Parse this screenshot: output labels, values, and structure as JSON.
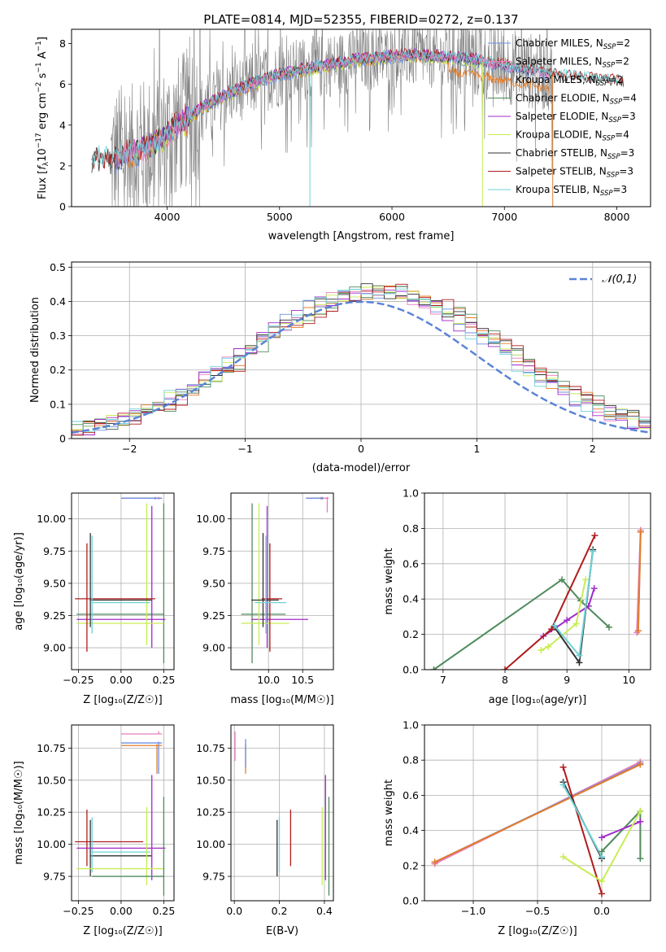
{
  "figure_title": "PLATE=0814, MJD=52355, FIBERID=0272, z=0.137",
  "colors": {
    "Chabrier MILES": "#6f8fe0",
    "Salpeter MILES": "#e87cbf",
    "Kroupa MILES": "#e47c28",
    "Chabrier ELODIE": "#4f8a5b",
    "Salpeter ELODIE": "#a12bc8",
    "Kroupa ELODIE": "#c9ec56",
    "Chabrier STELIB": "#333333",
    "Salpeter STELIB": "#b01c1c",
    "Kroupa STELIB": "#6fd2d6",
    "data": "#808080"
  },
  "chart_data": [
    {
      "id": "spectrum",
      "type": "line",
      "title": "PLATE=0814, MJD=52355, FIBERID=0272, z=0.137",
      "xlabel": "wavelength [Angstrom, rest frame]",
      "ylabel": "Flux [f_λ10⁻¹⁷ erg cm⁻² s⁻¹ A⁻¹]",
      "xlim": [
        3150,
        8300
      ],
      "ylim": [
        0,
        8.7
      ],
      "xticks": [
        "4000",
        "5000",
        "6000",
        "7000",
        "8000"
      ],
      "yticks": [
        "0",
        "2",
        "4",
        "6",
        "8"
      ],
      "grid": false,
      "legend_position": "upper-right",
      "legend": [
        "Chabrier MILES, N_SSP=2",
        "Salpeter MILES, N_SSP=2",
        "Kroupa MILES, N_SSP=2",
        "Chabrier ELODIE, N_SSP=4",
        "Salpeter ELODIE, N_SSP=3",
        "Kroupa ELODIE, N_SSP=4",
        "Chabrier STELIB, N_SSP=3",
        "Salpeter STELIB, N_SSP=3",
        "Kroupa STELIB, N_SSP=3"
      ],
      "legend_items": [
        {
          "label": "Chabrier MILES, N",
          "sub": "SSP",
          "tail": "=2"
        },
        {
          "label": "Salpeter MILES, N",
          "sub": "SSP",
          "tail": "=2"
        },
        {
          "label": "Kroupa MILES, N",
          "sub": "SSP",
          "tail": "=2"
        },
        {
          "label": "Chabrier ELODIE, N",
          "sub": "SSP",
          "tail": "=4"
        },
        {
          "label": "Salpeter ELODIE, N",
          "sub": "SSP",
          "tail": "=3"
        },
        {
          "label": "Kroupa ELODIE, N",
          "sub": "SSP",
          "tail": "=4"
        },
        {
          "label": "Chabrier STELIB, N",
          "sub": "SSP",
          "tail": "=3"
        },
        {
          "label": "Salpeter STELIB, N",
          "sub": "SSP",
          "tail": "=3"
        },
        {
          "label": "Kroupa STELIB, N",
          "sub": "SSP",
          "tail": "=3"
        }
      ],
      "continuum": {
        "x": [
          3330,
          3500,
          3700,
          3900,
          4100,
          4300,
          4500,
          4700,
          4900,
          5100,
          5300,
          5500,
          5700,
          5900,
          6100,
          6300,
          6500,
          6700,
          6900,
          7100,
          7300,
          7500,
          7700,
          7900,
          8060
        ],
        "y": [
          2.2,
          2.3,
          2.6,
          3.1,
          4.0,
          4.8,
          5.4,
          5.9,
          6.3,
          6.6,
          6.8,
          7.0,
          7.2,
          7.3,
          7.4,
          7.4,
          7.3,
          7.2,
          7.0,
          6.8,
          6.6,
          6.4,
          6.3,
          6.2,
          6.1
        ]
      },
      "data_range": [
        3500,
        7430
      ]
    },
    {
      "id": "residuals",
      "type": "bar",
      "xlabel": "(data-model)/error",
      "ylabel": "Normed distribution",
      "xlim": [
        -2.5,
        2.5
      ],
      "ylim": [
        0,
        0.515
      ],
      "xticks": [
        -2,
        -1,
        0,
        1,
        2
      ],
      "yticks": [
        0.0,
        0.1,
        0.2,
        0.3,
        0.4,
        0.5
      ],
      "grid": true,
      "legend_position": "upper-right",
      "legend": [
        "𝒩(0,1)"
      ],
      "gaussian": {
        "mean": 0,
        "sigma": 1
      }
    },
    {
      "id": "age-vs-Z",
      "type": "scatter",
      "xlabel": "Z [log10(Z/Z☉)]",
      "ylabel": "age  [log10(age/yr)]",
      "xlim": [
        -0.29,
        0.31
      ],
      "ylim": [
        8.83,
        10.2
      ],
      "xticks": [
        "−0.25",
        "0.00",
        "0.25"
      ],
      "yticks": [
        "9.00",
        "9.25",
        "9.50",
        "9.75",
        "10.00"
      ],
      "grid": true,
      "errorbars": [
        {
          "series": "Kroupa MILES",
          "x": 0.25,
          "xerr": [
            0.0,
            0.0
          ],
          "y": 10.16,
          "yerr": 0.005,
          "xspan": [
            0.0,
            0.24
          ]
        },
        {
          "series": "Salpeter MILES",
          "x": 0.22,
          "xspan": [
            0.0,
            0.24
          ],
          "y": 10.16,
          "yspan": [
            10.15,
            10.17
          ]
        },
        {
          "series": "Chabrier ELODIE",
          "x": 0.25,
          "xspan": [
            -0.26,
            0.25
          ],
          "y": 9.26,
          "yspan": [
            8.88,
            10.12
          ]
        },
        {
          "series": "Salpeter ELODIE",
          "x": 0.18,
          "xspan": [
            -0.26,
            0.26
          ],
          "y": 9.22,
          "yspan": [
            9.0,
            10.1
          ]
        },
        {
          "series": "Kroupa ELODIE",
          "x": 0.15,
          "xspan": [
            -0.26,
            0.25
          ],
          "y": 9.19,
          "yspan": [
            9.02,
            10.12
          ]
        },
        {
          "series": "Salpeter STELIB",
          "x": -0.2,
          "xspan": [
            -0.27,
            0.2
          ],
          "y": 9.38,
          "yspan": [
            8.97,
            9.81
          ]
        },
        {
          "series": "Chabrier STELIB",
          "x": -0.18,
          "xspan": [
            -0.18,
            0.18
          ],
          "y": 9.37,
          "yspan": [
            9.16,
            9.89
          ]
        },
        {
          "series": "Kroupa STELIB",
          "x": -0.17,
          "xspan": [
            -0.17,
            0.17
          ],
          "y": 9.35,
          "yspan": [
            9.11,
            9.87
          ]
        },
        {
          "series": "Chabrier MILES",
          "x": 0.2,
          "xspan": [
            0.0,
            0.24
          ],
          "y": 10.16,
          "yspan": [
            10.15,
            10.17
          ]
        }
      ]
    },
    {
      "id": "age-vs-mass",
      "type": "scatter",
      "xlabel": "mass [log10(M/M☉)]",
      "ylabel": "",
      "xlim": [
        9.45,
        10.95
      ],
      "ylim": [
        8.83,
        10.2
      ],
      "xticks": [
        "10.0",
        "10.5"
      ],
      "yticks": [
        "9.00",
        "9.25",
        "9.50",
        "9.75",
        "10.00"
      ],
      "grid": true,
      "errorbars": [
        {
          "series": "Kroupa MILES",
          "xspan": [
            10.55,
            10.78
          ],
          "y": 10.16,
          "x": 10.77,
          "yspan": [
            10.15,
            10.17
          ]
        },
        {
          "series": "Salpeter MILES",
          "xspan": [
            10.55,
            10.88
          ],
          "y": 10.16,
          "x": 10.86,
          "yspan": [
            10.05,
            10.17
          ]
        },
        {
          "series": "Chabrier MILES",
          "xspan": [
            10.55,
            10.8
          ],
          "y": 10.16,
          "x": 10.79,
          "yspan": [
            10.15,
            10.17
          ]
        },
        {
          "series": "Chabrier ELODIE",
          "xspan": [
            9.6,
            10.25
          ],
          "y": 9.26,
          "x": 9.76,
          "yspan": [
            8.88,
            10.12
          ]
        },
        {
          "series": "Salpeter ELODIE",
          "xspan": [
            9.75,
            10.58
          ],
          "y": 9.22,
          "x": 9.98,
          "yspan": [
            9.0,
            10.1
          ]
        },
        {
          "series": "Kroupa ELODIE",
          "xspan": [
            9.6,
            10.3
          ],
          "y": 9.19,
          "x": 9.86,
          "yspan": [
            9.02,
            10.12
          ]
        },
        {
          "series": "Salpeter STELIB",
          "xspan": [
            9.9,
            10.2
          ],
          "y": 9.38,
          "x": 10.02,
          "yspan": [
            8.97,
            9.81
          ]
        },
        {
          "series": "Chabrier STELIB",
          "xspan": [
            9.75,
            10.15
          ],
          "y": 9.37,
          "x": 9.92,
          "yspan": [
            9.16,
            9.89
          ]
        },
        {
          "series": "Kroupa STELIB",
          "xspan": [
            9.8,
            10.26
          ],
          "y": 9.35,
          "x": 9.96,
          "yspan": [
            9.11,
            9.87
          ]
        }
      ]
    },
    {
      "id": "massweight-vs-age",
      "type": "line",
      "xlabel": "age  [log10(age/yr)]",
      "ylabel": "mass weight",
      "xlim": [
        6.7,
        10.35
      ],
      "ylim": [
        0,
        1.0
      ],
      "xticks": [
        "7",
        "8",
        "9",
        "10"
      ],
      "yticks": [
        "0.0",
        "0.2",
        "0.4",
        "0.6",
        "0.8",
        "1.0"
      ],
      "grid": true,
      "series": [
        {
          "name": "Chabrier MILES",
          "x": [
            10.15,
            10.19
          ],
          "y": [
            0.22,
            0.78
          ]
        },
        {
          "name": "Salpeter MILES",
          "x": [
            10.13,
            10.19
          ],
          "y": [
            0.21,
            0.79
          ]
        },
        {
          "name": "Kroupa MILES",
          "x": [
            10.15,
            10.19
          ],
          "y": [
            0.22,
            0.78
          ]
        },
        {
          "name": "Chabrier ELODIE",
          "x": [
            6.85,
            8.92,
            9.22,
            9.68
          ],
          "y": [
            0.0,
            0.51,
            0.39,
            0.24
          ]
        },
        {
          "name": "Salpeter ELODIE",
          "x": [
            8.62,
            9.0,
            9.35,
            9.44
          ],
          "y": [
            0.19,
            0.28,
            0.36,
            0.46
          ]
        },
        {
          "name": "Kroupa ELODIE",
          "x": [
            8.58,
            8.7,
            9.15,
            9.3
          ],
          "y": [
            0.11,
            0.13,
            0.26,
            0.51
          ]
        },
        {
          "name": "Chabrier STELIB",
          "x": [
            8.8,
            9.2,
            9.42
          ],
          "y": [
            0.24,
            0.04,
            0.68
          ]
        },
        {
          "name": "Salpeter STELIB",
          "x": [
            8.0,
            8.75,
            9.45
          ],
          "y": [
            0.0,
            0.23,
            0.76
          ]
        },
        {
          "name": "Kroupa STELIB",
          "x": [
            8.8,
            9.2,
            9.42
          ],
          "y": [
            0.25,
            0.08,
            0.67
          ]
        }
      ]
    },
    {
      "id": "mass-vs-Z",
      "type": "scatter",
      "xlabel": "Z [log10(Z/Z☉)]",
      "ylabel": "mass [log10(M/M☉)]",
      "xlim": [
        -0.29,
        0.31
      ],
      "ylim": [
        9.56,
        10.93
      ],
      "xticks": [
        "−0.25",
        "0.00",
        "0.25"
      ],
      "yticks": [
        "9.75",
        "10.00",
        "10.25",
        "10.50",
        "10.75"
      ],
      "grid": true,
      "errorbars": [
        {
          "series": "Salpeter MILES",
          "x": 0.22,
          "xspan": [
            0.0,
            0.24
          ],
          "y": 10.86,
          "yspan": [
            10.86,
            10.88
          ]
        },
        {
          "series": "Chabrier MILES",
          "x": 0.22,
          "xspan": [
            0.0,
            0.24
          ],
          "y": 10.79,
          "yspan": [
            10.55,
            10.8
          ]
        },
        {
          "series": "Kroupa MILES",
          "x": 0.21,
          "xspan": [
            0.0,
            0.24
          ],
          "y": 10.77,
          "yspan": [
            10.55,
            10.78
          ]
        },
        {
          "series": "Salpeter STELIB",
          "x": -0.2,
          "xspan": [
            -0.27,
            0.13
          ],
          "y": 10.02,
          "yspan": [
            9.83,
            10.27
          ]
        },
        {
          "series": "Chabrier STELIB",
          "x": -0.18,
          "xspan": [
            -0.18,
            0.18
          ],
          "y": 9.91,
          "yspan": [
            9.75,
            10.19
          ]
        },
        {
          "series": "Kroupa STELIB",
          "x": -0.17,
          "xspan": [
            -0.17,
            0.17
          ],
          "y": 9.94,
          "yspan": [
            9.78,
            10.21
          ]
        },
        {
          "series": "Salpeter ELODIE",
          "x": 0.18,
          "xspan": [
            -0.26,
            0.26
          ],
          "y": 9.97,
          "yspan": [
            9.72,
            10.54
          ]
        },
        {
          "series": "Kroupa ELODIE",
          "x": 0.15,
          "xspan": [
            -0.26,
            0.25
          ],
          "y": 9.81,
          "yspan": [
            9.68,
            10.29
          ]
        },
        {
          "series": "Chabrier ELODIE",
          "x": 0.25,
          "xspan": [
            -0.17,
            0.25
          ],
          "y": 9.75,
          "yspan": [
            9.6,
            10.37
          ]
        }
      ]
    },
    {
      "id": "mass-vs-ebv",
      "type": "scatter",
      "xlabel": "E(B-V)",
      "ylabel": "",
      "xlim": [
        -0.015,
        0.44
      ],
      "ylim": [
        9.56,
        10.93
      ],
      "xticks": [
        "0.0",
        "0.2",
        "0.4"
      ],
      "yticks": [
        "9.75",
        "10.00",
        "10.25",
        "10.50",
        "10.75"
      ],
      "grid": true,
      "errorbars": [
        {
          "series": "Salpeter MILES",
          "x": 0.003,
          "yspan": [
            10.65,
            10.88
          ]
        },
        {
          "series": "Kroupa MILES",
          "x": 0.05,
          "yspan": [
            10.55,
            10.78
          ]
        },
        {
          "series": "Chabrier MILES",
          "x": 0.05,
          "yspan": [
            10.6,
            10.82
          ]
        },
        {
          "series": "Salpeter STELIB",
          "x": 0.25,
          "yspan": [
            9.83,
            10.27
          ]
        },
        {
          "series": "Chabrier STELIB",
          "x": 0.19,
          "yspan": [
            9.75,
            10.19
          ]
        },
        {
          "series": "Kroupa STELIB",
          "x": 0.2,
          "yspan": [
            9.78,
            10.21
          ]
        },
        {
          "series": "Salpeter ELODIE",
          "x": 0.405,
          "yspan": [
            9.72,
            10.54
          ]
        },
        {
          "series": "Kroupa ELODIE",
          "x": 0.39,
          "yspan": [
            9.68,
            10.29
          ]
        },
        {
          "series": "Chabrier ELODIE",
          "x": 0.42,
          "yspan": [
            9.6,
            10.37
          ]
        }
      ]
    },
    {
      "id": "massweight-vs-Z",
      "type": "line",
      "xlabel": "Z [log10(Z/Z☉)]",
      "ylabel": "mass weight",
      "xlim": [
        -1.38,
        0.38
      ],
      "ylim": [
        0,
        1.0
      ],
      "xticks": [
        "−1.0",
        "−0.5",
        "0.0"
      ],
      "yticks": [
        "0.0",
        "0.2",
        "0.4",
        "0.6",
        "0.8",
        "1.0"
      ],
      "grid": true,
      "series": [
        {
          "name": "Salpeter MILES",
          "x": [
            -1.3,
            0.3
          ],
          "y": [
            0.21,
            0.79
          ]
        },
        {
          "name": "Chabrier MILES",
          "x": [
            -1.3,
            0.3
          ],
          "y": [
            0.22,
            0.78
          ]
        },
        {
          "name": "Kroupa MILES",
          "x": [
            -1.3,
            0.3
          ],
          "y": [
            0.22,
            0.775
          ]
        },
        {
          "name": "Salpeter STELIB",
          "x": [
            -0.3,
            0.0
          ],
          "y": [
            0.76,
            0.04
          ]
        },
        {
          "name": "Chabrier STELIB",
          "x": [
            -0.3,
            0.0
          ],
          "y": [
            0.675,
            0.24
          ]
        },
        {
          "name": "Kroupa STELIB",
          "x": [
            -0.3,
            0.0
          ],
          "y": [
            0.66,
            0.25
          ]
        },
        {
          "name": "Chabrier ELODIE",
          "x": [
            0.0,
            0.3,
            0.3
          ],
          "y": [
            0.28,
            0.51,
            0.24
          ]
        },
        {
          "name": "Salpeter ELODIE",
          "x": [
            0.0,
            0.3
          ],
          "y": [
            0.36,
            0.45
          ]
        },
        {
          "name": "Kroupa ELODIE",
          "x": [
            -0.3,
            0.0,
            0.3
          ],
          "y": [
            0.25,
            0.11,
            0.51
          ]
        }
      ]
    }
  ]
}
